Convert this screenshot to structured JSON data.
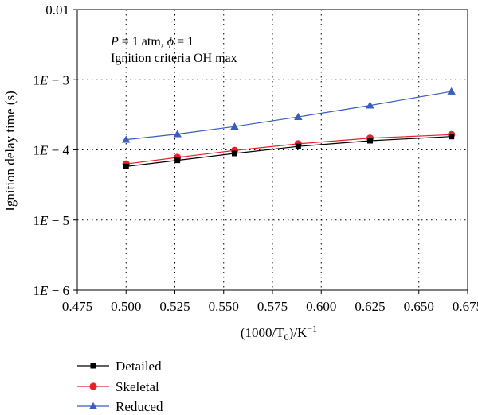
{
  "chart_data": {
    "type": "line",
    "xlabel": "(1000/T",
    "xlabel_sub": "0",
    "xlabel_tail": ")/K",
    "xlabel_sup": "−1",
    "ylabel": "Ignition delay time (s)",
    "xlim": [
      0.475,
      0.675
    ],
    "ylim": [
      1e-06,
      0.01
    ],
    "yscale": "log",
    "grid": true,
    "xticks": [
      0.475,
      0.5,
      0.525,
      0.55,
      0.575,
      0.6,
      0.625,
      0.65,
      0.675
    ],
    "xtick_labels": [
      "0.475",
      "0.500",
      "0.525",
      "0.550",
      "0.575",
      "0.600",
      "0.625",
      "0.650",
      "0.675"
    ],
    "yticks": [
      1e-06,
      1e-05,
      0.0001,
      0.001,
      0.01
    ],
    "ytick_labels": [
      "1E − 6",
      "1E − 5",
      "1E − 4",
      "1E − 3",
      "0.01"
    ],
    "annotation": {
      "p_sym": "P",
      "p_text": " = 1 atm, ",
      "phi_sym": "ϕ",
      "phi_text": " = 1",
      "line2": "Ignition criteria OH max"
    },
    "legend_position": "bottom-left-outside",
    "series": [
      {
        "name": "Detailed",
        "color": "#000000",
        "marker": "square",
        "x": [
          0.5,
          0.5263,
          0.5556,
          0.5882,
          0.625,
          0.6667
        ],
        "y": [
          5.8e-05,
          7.1e-05,
          8.9e-05,
          0.000112,
          0.000135,
          0.000155
        ]
      },
      {
        "name": "Skeletal",
        "color": "#e8202a",
        "marker": "circle",
        "x": [
          0.5,
          0.5263,
          0.5556,
          0.5882,
          0.625,
          0.6667
        ],
        "y": [
          6.3e-05,
          7.8e-05,
          9.8e-05,
          0.000122,
          0.000147,
          0.000165
        ]
      },
      {
        "name": "Reduced",
        "color": "#3a5dbe",
        "marker": "triangle",
        "x": [
          0.5,
          0.5263,
          0.5556,
          0.5882,
          0.625,
          0.6667
        ],
        "y": [
          0.00014,
          0.000168,
          0.000215,
          0.000295,
          0.00043,
          0.00068
        ]
      }
    ]
  }
}
